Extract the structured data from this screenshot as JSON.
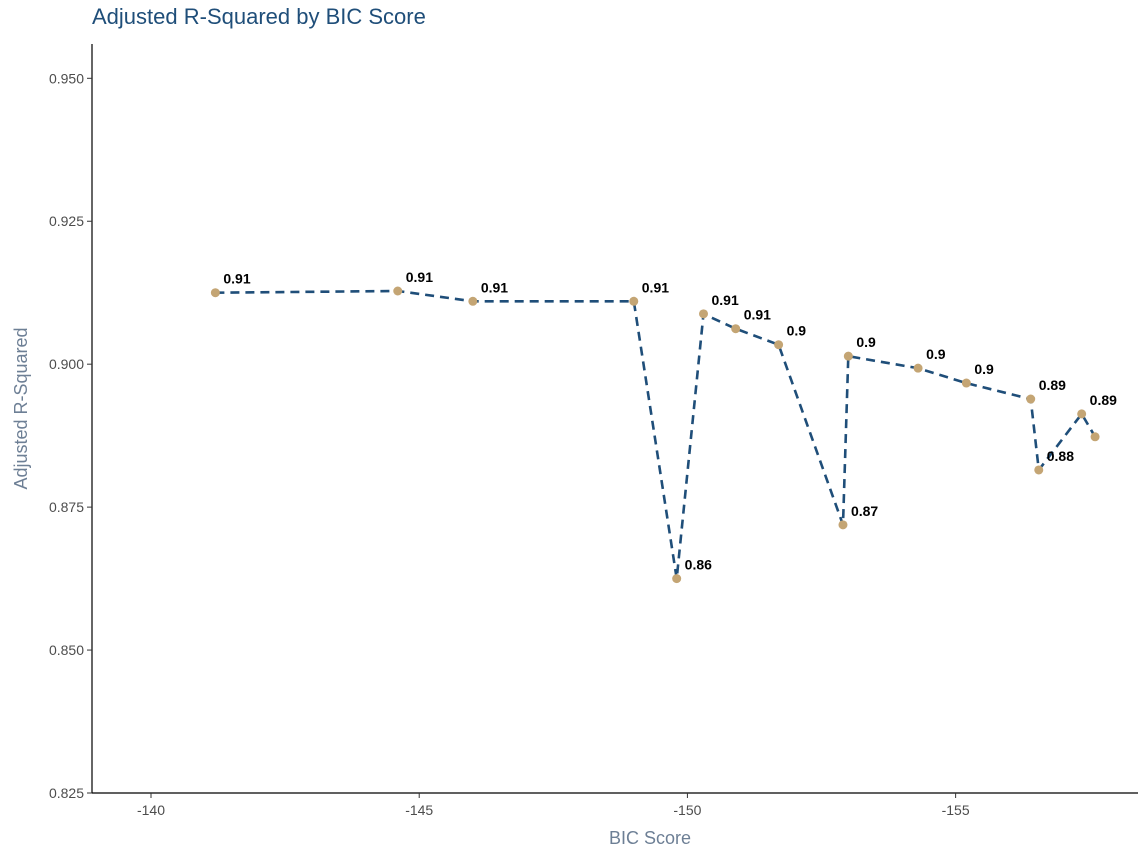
{
  "chart_data": {
    "type": "line",
    "title": "Adjusted R-Squared by BIC Score",
    "xlabel": "BIC Score",
    "ylabel": "Adjusted R-Squared",
    "x_reversed": true,
    "xlim": [
      -138.9,
      -158.4
    ],
    "ylim": [
      0.825,
      0.956
    ],
    "x_ticks": [
      -140,
      -145,
      -150,
      -155
    ],
    "x_tick_labels": [
      "-140",
      "-145",
      "-150",
      "-155"
    ],
    "y_ticks": [
      0.825,
      0.85,
      0.875,
      0.9,
      0.925,
      0.95
    ],
    "y_tick_labels": [
      "0.825",
      "0.850",
      "0.875",
      "0.900",
      "0.925",
      "0.950"
    ],
    "grid": false,
    "line_color": "#1f4e79",
    "point_color": "#c4a574",
    "line_style": "dashed",
    "points": [
      {
        "x": -141.2,
        "y": 0.9125,
        "label": "0.91"
      },
      {
        "x": -144.6,
        "y": 0.9128,
        "label": "0.91"
      },
      {
        "x": -146.0,
        "y": 0.911,
        "label": "0.91"
      },
      {
        "x": -149.0,
        "y": 0.911,
        "label": "0.91"
      },
      {
        "x": -149.8,
        "y": 0.8625,
        "label": "0.86"
      },
      {
        "x": -150.3,
        "y": 0.9088,
        "label": "0.91"
      },
      {
        "x": -150.9,
        "y": 0.9062,
        "label": "0.91"
      },
      {
        "x": -151.7,
        "y": 0.9034,
        "label": "0.9"
      },
      {
        "x": -152.9,
        "y": 0.8719,
        "label": "0.87"
      },
      {
        "x": -153.0,
        "y": 0.9014,
        "label": "0.9"
      },
      {
        "x": -154.3,
        "y": 0.8993,
        "label": "0.9"
      },
      {
        "x": -155.2,
        "y": 0.8967,
        "label": "0.9"
      },
      {
        "x": -156.4,
        "y": 0.8939,
        "label": "0.89"
      },
      {
        "x": -156.55,
        "y": 0.8815,
        "label": "0.88"
      },
      {
        "x": -157.35,
        "y": 0.8913,
        "label": "0.89"
      },
      {
        "x": -157.6,
        "y": 0.8873,
        "label": ""
      }
    ]
  }
}
